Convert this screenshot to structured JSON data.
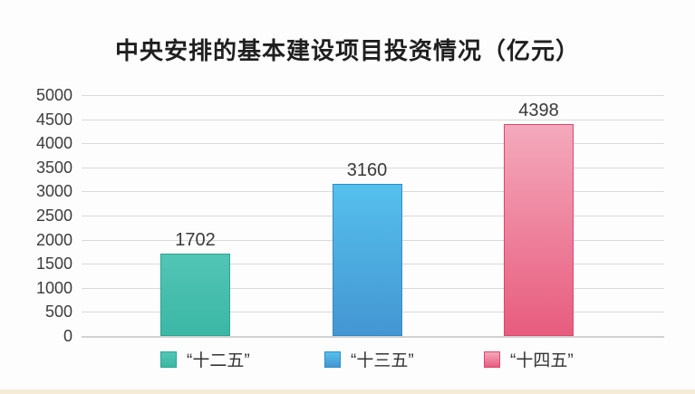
{
  "chart_data": {
    "type": "bar",
    "title": "中央安排的基本建设项目投资情况（亿元）",
    "categories": [
      "“十二五”",
      "“十三五”",
      "“十四五”"
    ],
    "values": [
      1702,
      3160,
      4398
    ],
    "xlabel": "",
    "ylabel": "",
    "ylim": [
      0,
      5000
    ],
    "yticks": [
      5000,
      4500,
      4000,
      3500,
      3000,
      2500,
      2000,
      1500,
      1000,
      500,
      0
    ],
    "grid": true,
    "legend_position": "bottom",
    "series_colors": [
      {
        "name": "“十二五”",
        "top": "#52c5b5",
        "bottom": "#3cb7a5",
        "border": "#2ba593"
      },
      {
        "name": "“十三五”",
        "top": "#55c0ed",
        "bottom": "#4496d2",
        "border": "#338bc4"
      },
      {
        "name": "“十四五”",
        "top": "#f4a9bc",
        "bottom": "#e85c7e",
        "border": "#da486c"
      }
    ]
  },
  "decor": {
    "gridline_color": "#d9d9d9",
    "axis_line_color": "#d2d2d2",
    "bottom_strip_color": "#f5ebd6",
    "background_color": "#fdfdfd"
  }
}
